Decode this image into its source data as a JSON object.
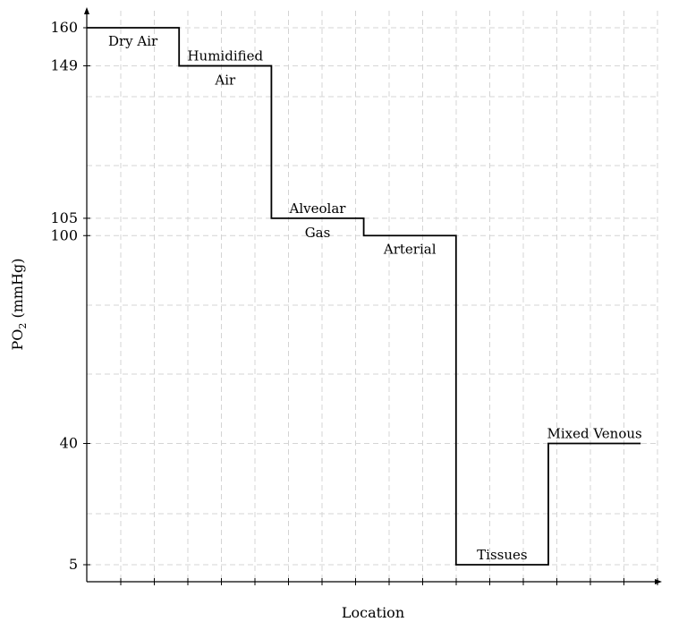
{
  "chart_data": {
    "type": "line",
    "step": true,
    "xlabel": "Location",
    "ylabel_main": "PO",
    "ylabel_sub": "2",
    "ylabel_rest": " (mmHg)",
    "ylim": [
      0,
      165
    ],
    "yticks": [
      5,
      40,
      100,
      105,
      149,
      160
    ],
    "grid": true,
    "segments": [
      {
        "name": "Dry Air",
        "lines": [
          "Dry Air"
        ],
        "value": 160,
        "x_start": 0,
        "x_end": 1
      },
      {
        "name": "Humidified Air",
        "lines": [
          "Humidified",
          "Air"
        ],
        "value": 149,
        "x_start": 1,
        "x_end": 2
      },
      {
        "name": "Alveolar Gas",
        "lines": [
          "Alveolar",
          "Gas"
        ],
        "value": 105,
        "x_start": 2,
        "x_end": 3
      },
      {
        "name": "Arterial",
        "lines": [
          "Arterial"
        ],
        "value": 100,
        "x_start": 3,
        "x_end": 4
      },
      {
        "name": "Tissues",
        "lines": [
          "Tissues"
        ],
        "value": 5,
        "x_start": 4,
        "x_end": 5
      },
      {
        "name": "Mixed Venous",
        "lines": [
          "Mixed Venous"
        ],
        "value": 40,
        "x_start": 5,
        "x_end": 6
      }
    ]
  }
}
